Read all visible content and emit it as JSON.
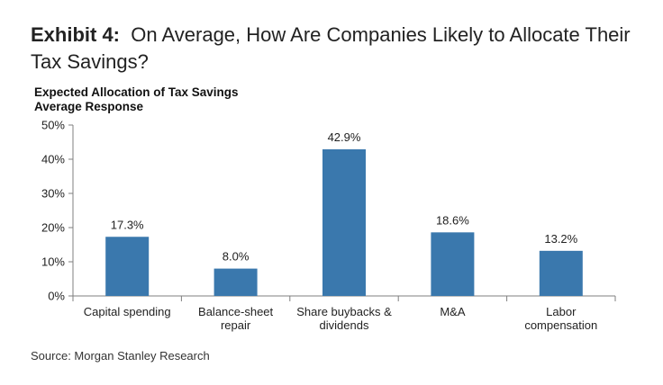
{
  "exhibit": {
    "label": "Exhibit 4:",
    "title": "On Average, How Are Companies Likely to Allocate Their Tax Savings?"
  },
  "chart_data": {
    "type": "bar",
    "title": "Expected Allocation of Tax Savings",
    "subtitle": "Average Response",
    "categories": [
      [
        "Capital spending"
      ],
      [
        "Balance-sheet",
        "repair"
      ],
      [
        "Share buybacks &",
        "dividends"
      ],
      [
        "M&A"
      ],
      [
        "Labor",
        "compensation"
      ]
    ],
    "values": [
      17.3,
      8.0,
      42.9,
      18.6,
      13.2
    ],
    "data_labels": [
      "17.3%",
      "8.0%",
      "42.9%",
      "18.6%",
      "13.2%"
    ],
    "yticks": [
      "0%",
      "10%",
      "20%",
      "30%",
      "40%",
      "50%"
    ],
    "ylim": [
      0,
      50
    ],
    "grid": false,
    "bar_color": "#3a78ad"
  },
  "source": "Source: Morgan Stanley Research"
}
